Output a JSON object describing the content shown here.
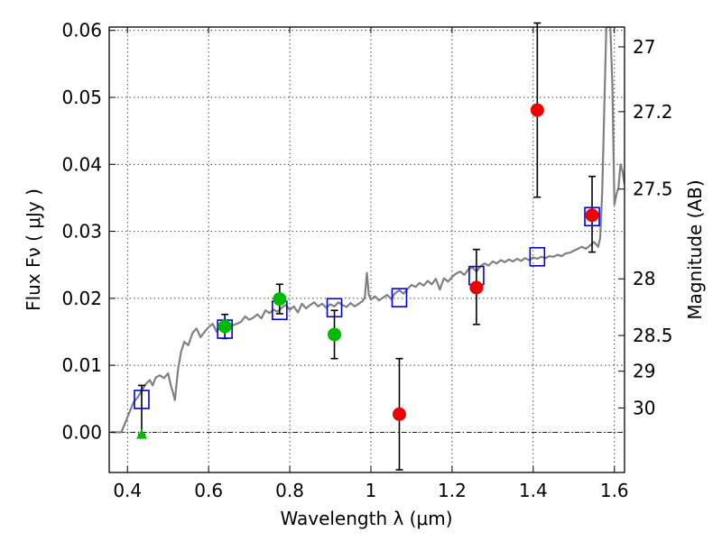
{
  "chart_data": {
    "type": "scatter",
    "xlabel": "Wavelength  λ (μm)",
    "ylabel": "Flux  Fν  ( μJy )",
    "y2label": "Magnitude (AB)",
    "xlim": [
      0.355,
      1.625
    ],
    "ylim": [
      -0.006,
      0.0605
    ],
    "grid": true,
    "grid_style": "dotted",
    "x_ticks": [
      {
        "value": 0.4,
        "label": "0.4"
      },
      {
        "value": 0.6,
        "label": "0.6"
      },
      {
        "value": 0.8,
        "label": "0.8"
      },
      {
        "value": 1.0,
        "label": "1"
      },
      {
        "value": 1.2,
        "label": "1.2"
      },
      {
        "value": 1.4,
        "label": "1.4"
      },
      {
        "value": 1.6,
        "label": "1.6"
      }
    ],
    "y_ticks": [
      {
        "value": 0.0,
        "label": "0.00"
      },
      {
        "value": 0.01,
        "label": "0.01"
      },
      {
        "value": 0.02,
        "label": "0.02"
      },
      {
        "value": 0.03,
        "label": "0.03"
      },
      {
        "value": 0.04,
        "label": "0.04"
      },
      {
        "value": 0.05,
        "label": "0.05"
      },
      {
        "value": 0.06,
        "label": "0.06"
      }
    ],
    "y2_ticks": [
      {
        "mag": 27,
        "label": "27"
      },
      {
        "mag": 27.2,
        "label": "27.2"
      },
      {
        "mag": 27.5,
        "label": "27.5"
      },
      {
        "mag": 28,
        "label": "28"
      },
      {
        "mag": 28.5,
        "label": "28.5"
      },
      {
        "mag": 29,
        "label": "29"
      },
      {
        "mag": 30,
        "label": "30"
      }
    ],
    "colors": {
      "model_line": "#808080",
      "model_photometry": "#0000dd",
      "detection": "#00bb00",
      "low_significance": "#ee0000",
      "upper_limit": "#00bb00",
      "error_bar": "#000000",
      "zero_line": "#000000"
    },
    "series": [
      {
        "kind": "line",
        "role": "model_spectrum",
        "points": [
          [
            0.36,
            0.0
          ],
          [
            0.385,
            0.0
          ],
          [
            0.395,
            0.0015
          ],
          [
            0.405,
            0.003
          ],
          [
            0.415,
            0.0045
          ],
          [
            0.425,
            0.0052
          ],
          [
            0.435,
            0.0062
          ],
          [
            0.445,
            0.0072
          ],
          [
            0.455,
            0.0078
          ],
          [
            0.462,
            0.007
          ],
          [
            0.47,
            0.0082
          ],
          [
            0.48,
            0.0085
          ],
          [
            0.49,
            0.0081
          ],
          [
            0.5,
            0.0088
          ],
          [
            0.507,
            0.007
          ],
          [
            0.512,
            0.006
          ],
          [
            0.517,
            0.0048
          ],
          [
            0.521,
            0.0072
          ],
          [
            0.525,
            0.0095
          ],
          [
            0.532,
            0.012
          ],
          [
            0.54,
            0.0135
          ],
          [
            0.55,
            0.013
          ],
          [
            0.56,
            0.0148
          ],
          [
            0.57,
            0.0155
          ],
          [
            0.58,
            0.0142
          ],
          [
            0.59,
            0.015
          ],
          [
            0.6,
            0.0157
          ],
          [
            0.61,
            0.0162
          ],
          [
            0.62,
            0.015
          ],
          [
            0.63,
            0.016
          ],
          [
            0.64,
            0.0155
          ],
          [
            0.65,
            0.0152
          ],
          [
            0.66,
            0.016
          ],
          [
            0.67,
            0.0162
          ],
          [
            0.68,
            0.0165
          ],
          [
            0.69,
            0.0173
          ],
          [
            0.7,
            0.0168
          ],
          [
            0.71,
            0.0171
          ],
          [
            0.72,
            0.0176
          ],
          [
            0.73,
            0.017
          ],
          [
            0.74,
            0.0182
          ],
          [
            0.75,
            0.0178
          ],
          [
            0.76,
            0.0183
          ],
          [
            0.77,
            0.018
          ],
          [
            0.78,
            0.0186
          ],
          [
            0.79,
            0.019
          ],
          [
            0.8,
            0.0183
          ],
          [
            0.81,
            0.0188
          ],
          [
            0.82,
            0.0179
          ],
          [
            0.83,
            0.0192
          ],
          [
            0.84,
            0.0185
          ],
          [
            0.85,
            0.019
          ],
          [
            0.86,
            0.0194
          ],
          [
            0.87,
            0.0188
          ],
          [
            0.88,
            0.0192
          ],
          [
            0.89,
            0.0186
          ],
          [
            0.9,
            0.0191
          ],
          [
            0.91,
            0.0188
          ],
          [
            0.92,
            0.0194
          ],
          [
            0.93,
            0.019
          ],
          [
            0.94,
            0.0187
          ],
          [
            0.95,
            0.0193
          ],
          [
            0.96,
            0.0188
          ],
          [
            0.97,
            0.0192
          ],
          [
            0.98,
            0.0196
          ],
          [
            0.985,
            0.0202
          ],
          [
            0.99,
            0.0238
          ],
          [
            0.995,
            0.0205
          ],
          [
            1.0,
            0.0198
          ],
          [
            1.01,
            0.0203
          ],
          [
            1.02,
            0.0197
          ],
          [
            1.03,
            0.0201
          ],
          [
            1.04,
            0.0205
          ],
          [
            1.05,
            0.0199
          ],
          [
            1.06,
            0.0208
          ],
          [
            1.07,
            0.0212
          ],
          [
            1.08,
            0.0207
          ],
          [
            1.09,
            0.0214
          ],
          [
            1.1,
            0.022
          ],
          [
            1.11,
            0.0217
          ],
          [
            1.12,
            0.0223
          ],
          [
            1.13,
            0.0219
          ],
          [
            1.14,
            0.0226
          ],
          [
            1.15,
            0.0221
          ],
          [
            1.16,
            0.0229
          ],
          [
            1.17,
            0.0213
          ],
          [
            1.175,
            0.0222
          ],
          [
            1.18,
            0.023
          ],
          [
            1.19,
            0.0225
          ],
          [
            1.2,
            0.0232
          ],
          [
            1.21,
            0.0237
          ],
          [
            1.22,
            0.024
          ],
          [
            1.23,
            0.0235
          ],
          [
            1.24,
            0.0243
          ],
          [
            1.25,
            0.0246
          ],
          [
            1.26,
            0.024
          ],
          [
            1.27,
            0.0248
          ],
          [
            1.28,
            0.0252
          ],
          [
            1.29,
            0.0249
          ],
          [
            1.3,
            0.0255
          ],
          [
            1.31,
            0.0252
          ],
          [
            1.32,
            0.0257
          ],
          [
            1.33,
            0.0254
          ],
          [
            1.34,
            0.0258
          ],
          [
            1.35,
            0.0255
          ],
          [
            1.36,
            0.0259
          ],
          [
            1.37,
            0.0256
          ],
          [
            1.38,
            0.026
          ],
          [
            1.39,
            0.0257
          ],
          [
            1.4,
            0.0261
          ],
          [
            1.41,
            0.0259
          ],
          [
            1.42,
            0.0262
          ],
          [
            1.43,
            0.026
          ],
          [
            1.44,
            0.0263
          ],
          [
            1.45,
            0.0262
          ],
          [
            1.46,
            0.0265
          ],
          [
            1.47,
            0.0263
          ],
          [
            1.48,
            0.0267
          ],
          [
            1.49,
            0.0268
          ],
          [
            1.5,
            0.0271
          ],
          [
            1.51,
            0.0274
          ],
          [
            1.52,
            0.0277
          ],
          [
            1.53,
            0.0274
          ],
          [
            1.54,
            0.0279
          ],
          [
            1.55,
            0.0284
          ],
          [
            1.56,
            0.0277
          ],
          [
            1.565,
            0.029
          ],
          [
            1.57,
            0.036
          ],
          [
            1.575,
            0.048
          ],
          [
            1.58,
            0.0605
          ],
          [
            1.59,
            0.0605
          ],
          [
            1.595,
            0.052
          ],
          [
            1.6,
            0.034
          ],
          [
            1.605,
            0.0355
          ],
          [
            1.61,
            0.0365
          ],
          [
            1.615,
            0.04
          ],
          [
            1.62,
            0.039
          ],
          [
            1.625,
            0.037
          ]
        ]
      },
      {
        "kind": "marker",
        "role": "model_photometry",
        "marker": "square",
        "points": [
          {
            "x": 0.435,
            "y": 0.0049
          },
          {
            "x": 0.64,
            "y": 0.0154
          },
          {
            "x": 0.775,
            "y": 0.0182
          },
          {
            "x": 0.91,
            "y": 0.0186
          },
          {
            "x": 1.07,
            "y": 0.0201
          },
          {
            "x": 1.26,
            "y": 0.0234
          },
          {
            "x": 1.41,
            "y": 0.0262
          },
          {
            "x": 1.545,
            "y": 0.0322
          }
        ]
      },
      {
        "kind": "marker",
        "role": "detection",
        "marker": "circle",
        "points": [
          {
            "x": 0.64,
            "y": 0.0158,
            "yerr_low": 0.0018,
            "yerr_high": 0.0018
          },
          {
            "x": 0.775,
            "y": 0.0199,
            "yerr_low": 0.0022,
            "yerr_high": 0.0022
          },
          {
            "x": 0.91,
            "y": 0.0146,
            "yerr_low": 0.0036,
            "yerr_high": 0.0036
          }
        ]
      },
      {
        "kind": "marker",
        "role": "low_significance",
        "marker": "circle",
        "points": [
          {
            "x": 1.07,
            "y": 0.0027,
            "yerr_low": 0.0083,
            "yerr_high": 0.0083
          },
          {
            "x": 1.26,
            "y": 0.0216,
            "yerr_low": 0.0055,
            "yerr_high": 0.0057
          },
          {
            "x": 1.41,
            "y": 0.0481,
            "yerr_low": 0.013,
            "yerr_high": 0.013
          },
          {
            "x": 1.545,
            "y": 0.0324,
            "yerr_low": 0.0055,
            "yerr_high": 0.0058
          }
        ]
      },
      {
        "kind": "marker",
        "role": "upper_limit",
        "marker": "triangle",
        "points": [
          {
            "x": 0.435,
            "y": -0.0003,
            "yerr_low": 0.0,
            "yerr_high": 0.0073
          }
        ]
      }
    ]
  }
}
